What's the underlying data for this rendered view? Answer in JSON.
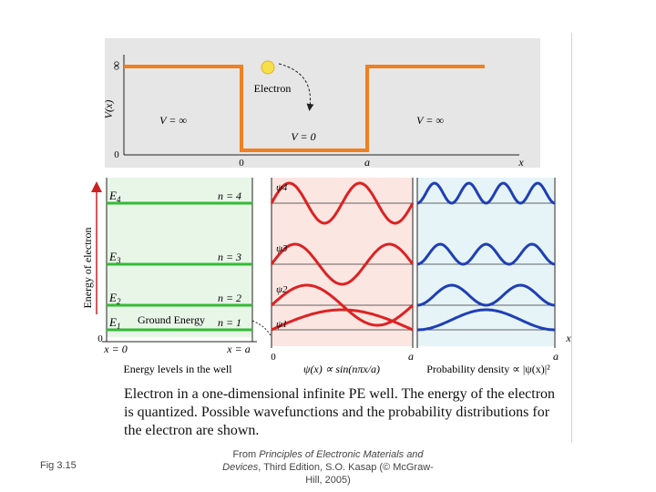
{
  "figure_label": "Fig 3.15",
  "source": {
    "prefix": "From ",
    "title": "Principles of Electronic Materials and Devices",
    "suffix": ", Third Edition, S.O. Kasap (© McGraw-Hill, 2005)"
  },
  "caption": "Electron in a one-dimensional infinite PE well. The energy of the electron is quantized. Possible wavefunctions and the probability distributions for the electron are shown.",
  "potential_panel": {
    "y_axis_label": "V(x)",
    "y_infinity": "∞",
    "y_zero": "0",
    "left_label": "V = ∞",
    "right_label": "V = ∞",
    "well_label": "V = 0",
    "electron_label": "Electron",
    "x_zero": "0",
    "x_a": "a",
    "x_axis": "x"
  },
  "energy_panel": {
    "y_axis_label": "Energy of electron",
    "levels": [
      {
        "E": "E",
        "sub": "4",
        "n": "n = 4"
      },
      {
        "E": "E",
        "sub": "3",
        "n": "n = 3"
      },
      {
        "E": "E",
        "sub": "2",
        "n": "n = 2"
      },
      {
        "E": "E",
        "sub": "1",
        "n": "n = 1"
      }
    ],
    "ground_label": "Ground Energy",
    "zero": "0",
    "x0_label": "x = 0",
    "xa_label": "x = a",
    "bottom_label": "Energy levels in the well"
  },
  "wave_panel": {
    "psi_labels": [
      "ψ4",
      "ψ3",
      "ψ2",
      "ψ1"
    ],
    "x_zero": "0",
    "x_a": "a",
    "bottom_label": "ψ(x) ∝ sin(nπx/a)"
  },
  "prob_panel": {
    "x_a": "a",
    "x_axis": "x",
    "bottom_label": "Probability density ∝ |ψ(x)|²"
  },
  "colors": {
    "potential": "#f08020",
    "level": "#33bb33",
    "wave": "#dd2222",
    "density": "#1f3fb5",
    "panel_gray": "#e6e6e6",
    "panel_green": "#e8f6e8",
    "panel_pink": "#fbe6e2",
    "panel_blue": "#e6f4f8"
  }
}
